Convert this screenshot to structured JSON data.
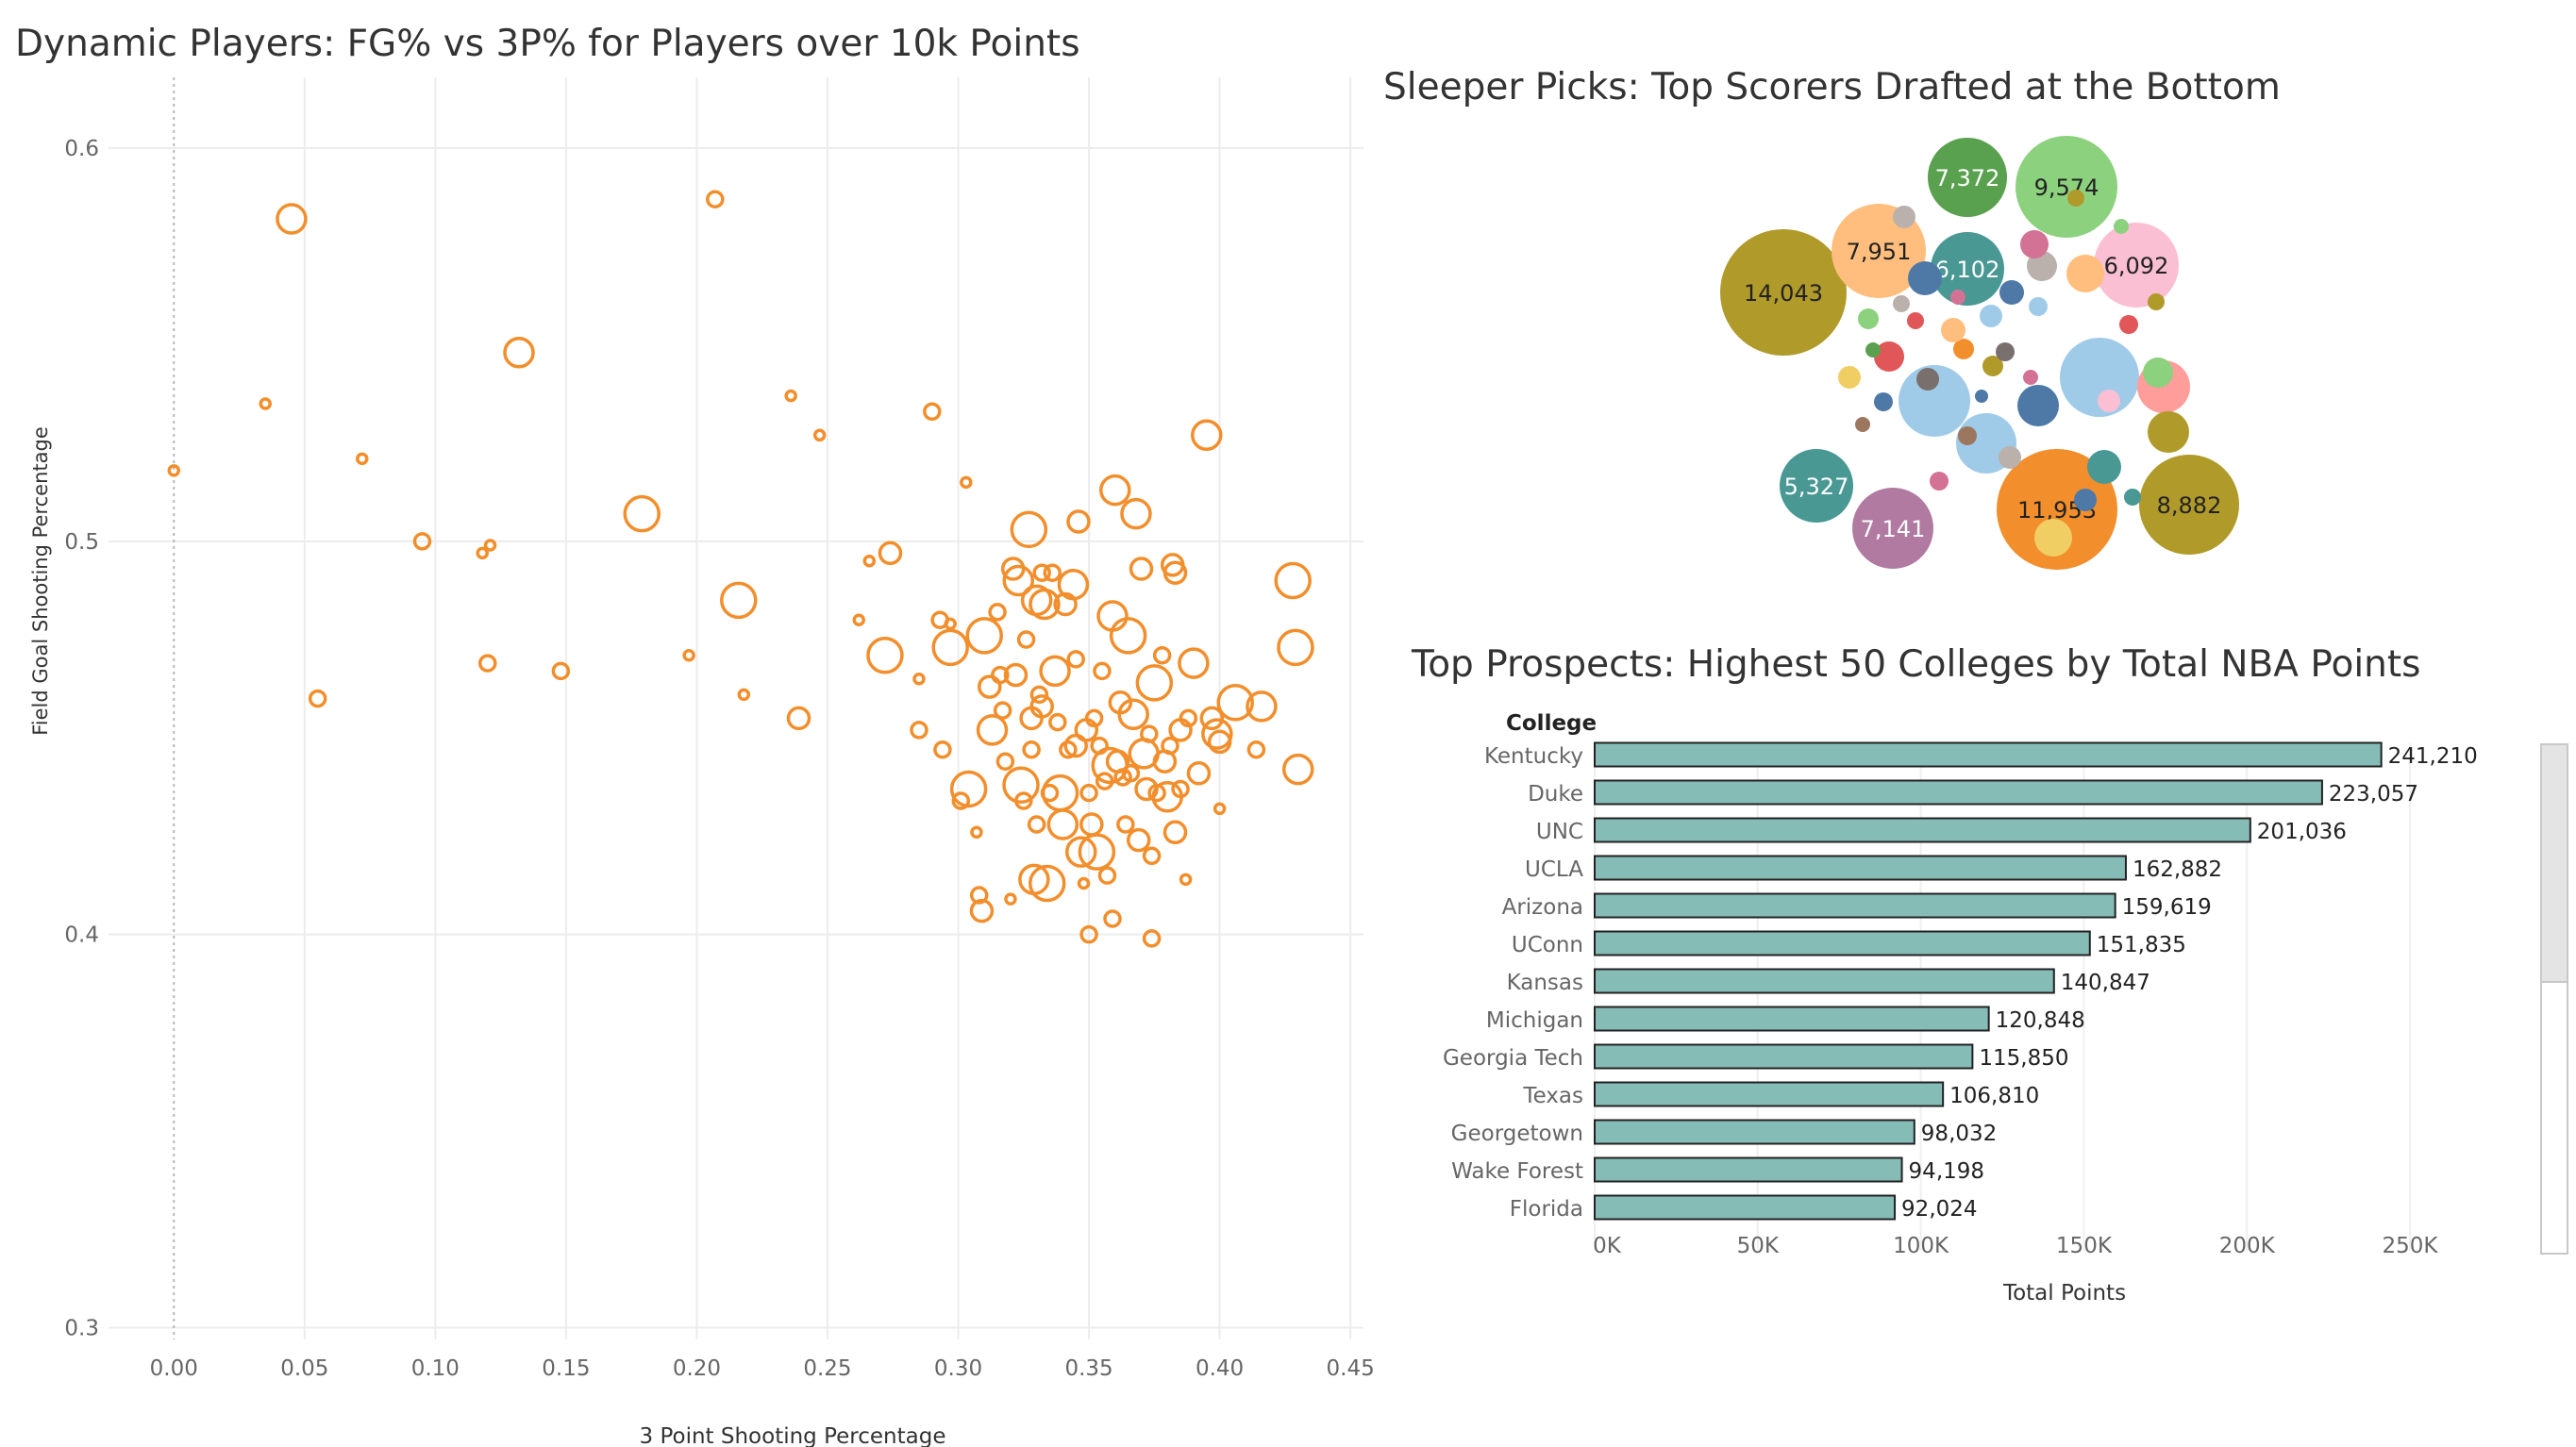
{
  "chart_data": [
    {
      "type": "scatter",
      "title": "Dynamic Players: FG% vs 3P% for Players over 10k Points",
      "xlabel": "3 Point Shooting Percentage",
      "ylabel": "Field Goal Shooting Percentage",
      "xlim": [
        -0.025,
        0.455
      ],
      "ylim": [
        0.297,
        0.618
      ],
      "xticks": [
        "0.00",
        "0.05",
        "0.10",
        "0.15",
        "0.20",
        "0.25",
        "0.30",
        "0.35",
        "0.40",
        "0.45"
      ],
      "yticks": [
        "0.3",
        "0.4",
        "0.5",
        "0.6"
      ],
      "marker_color": "#f28e2b",
      "grid": true,
      "points": [
        [
          0.0,
          0.518,
          1
        ],
        [
          0.035,
          0.535,
          1
        ],
        [
          0.045,
          0.582,
          4
        ],
        [
          0.055,
          0.46,
          2
        ],
        [
          0.072,
          0.521,
          1
        ],
        [
          0.095,
          0.5,
          2
        ],
        [
          0.118,
          0.497,
          1
        ],
        [
          0.121,
          0.499,
          1
        ],
        [
          0.12,
          0.469,
          2
        ],
        [
          0.132,
          0.548,
          4
        ],
        [
          0.148,
          0.467,
          2
        ],
        [
          0.179,
          0.507,
          5
        ],
        [
          0.197,
          0.471,
          1
        ],
        [
          0.207,
          0.587,
          2
        ],
        [
          0.216,
          0.485,
          5
        ],
        [
          0.218,
          0.461,
          1
        ],
        [
          0.236,
          0.537,
          1
        ],
        [
          0.239,
          0.455,
          3
        ],
        [
          0.247,
          0.527,
          1
        ],
        [
          0.262,
          0.48,
          1
        ],
        [
          0.266,
          0.495,
          1
        ],
        [
          0.274,
          0.497,
          3
        ],
        [
          0.272,
          0.471,
          5
        ],
        [
          0.285,
          0.465,
          1
        ],
        [
          0.285,
          0.452,
          2
        ],
        [
          0.29,
          0.533,
          2
        ],
        [
          0.293,
          0.48,
          2
        ],
        [
          0.294,
          0.447,
          2
        ],
        [
          0.297,
          0.473,
          5
        ],
        [
          0.297,
          0.479,
          1
        ],
        [
          0.301,
          0.434,
          2
        ],
        [
          0.303,
          0.515,
          1
        ],
        [
          0.304,
          0.437,
          5
        ],
        [
          0.307,
          0.426,
          1
        ],
        [
          0.308,
          0.41,
          2
        ],
        [
          0.309,
          0.406,
          3
        ],
        [
          0.31,
          0.476,
          5
        ],
        [
          0.312,
          0.463,
          3
        ],
        [
          0.313,
          0.452,
          4
        ],
        [
          0.315,
          0.482,
          2
        ],
        [
          0.316,
          0.466,
          2
        ],
        [
          0.317,
          0.457,
          2
        ],
        [
          0.318,
          0.444,
          2
        ],
        [
          0.32,
          0.409,
          1
        ],
        [
          0.321,
          0.493,
          3
        ],
        [
          0.322,
          0.466,
          3
        ],
        [
          0.323,
          0.49,
          4
        ],
        [
          0.324,
          0.438,
          5
        ],
        [
          0.325,
          0.434,
          2
        ],
        [
          0.326,
          0.475,
          2
        ],
        [
          0.327,
          0.503,
          5
        ],
        [
          0.328,
          0.455,
          3
        ],
        [
          0.328,
          0.447,
          2
        ],
        [
          0.329,
          0.414,
          4
        ],
        [
          0.33,
          0.485,
          4
        ],
        [
          0.33,
          0.428,
          2
        ],
        [
          0.331,
          0.461,
          2
        ],
        [
          0.332,
          0.492,
          2
        ],
        [
          0.332,
          0.458,
          3
        ],
        [
          0.333,
          0.484,
          4
        ],
        [
          0.334,
          0.413,
          5
        ],
        [
          0.335,
          0.436,
          2
        ],
        [
          0.336,
          0.492,
          2
        ],
        [
          0.337,
          0.467,
          4
        ],
        [
          0.338,
          0.454,
          2
        ],
        [
          0.339,
          0.436,
          5
        ],
        [
          0.34,
          0.428,
          4
        ],
        [
          0.341,
          0.484,
          3
        ],
        [
          0.342,
          0.447,
          2
        ],
        [
          0.344,
          0.489,
          4
        ],
        [
          0.345,
          0.47,
          2
        ],
        [
          0.345,
          0.448,
          3
        ],
        [
          0.346,
          0.505,
          3
        ],
        [
          0.347,
          0.421,
          4
        ],
        [
          0.348,
          0.413,
          1
        ],
        [
          0.349,
          0.452,
          3
        ],
        [
          0.35,
          0.4,
          2
        ],
        [
          0.35,
          0.436,
          2
        ],
        [
          0.351,
          0.428,
          3
        ],
        [
          0.352,
          0.455,
          2
        ],
        [
          0.353,
          0.421,
          5
        ],
        [
          0.354,
          0.448,
          2
        ],
        [
          0.355,
          0.467,
          2
        ],
        [
          0.356,
          0.439,
          2
        ],
        [
          0.357,
          0.415,
          2
        ],
        [
          0.358,
          0.443,
          5
        ],
        [
          0.359,
          0.404,
          2
        ],
        [
          0.359,
          0.481,
          4
        ],
        [
          0.36,
          0.513,
          4
        ],
        [
          0.361,
          0.444,
          3
        ],
        [
          0.362,
          0.459,
          3
        ],
        [
          0.363,
          0.44,
          2
        ],
        [
          0.364,
          0.428,
          2
        ],
        [
          0.365,
          0.476,
          5
        ],
        [
          0.366,
          0.441,
          2
        ],
        [
          0.367,
          0.456,
          4
        ],
        [
          0.368,
          0.507,
          4
        ],
        [
          0.369,
          0.424,
          3
        ],
        [
          0.37,
          0.493,
          3
        ],
        [
          0.371,
          0.446,
          4
        ],
        [
          0.372,
          0.437,
          3
        ],
        [
          0.373,
          0.451,
          2
        ],
        [
          0.374,
          0.42,
          2
        ],
        [
          0.374,
          0.399,
          2
        ],
        [
          0.375,
          0.464,
          5
        ],
        [
          0.376,
          0.436,
          2
        ],
        [
          0.378,
          0.471,
          2
        ],
        [
          0.379,
          0.444,
          3
        ],
        [
          0.38,
          0.435,
          4
        ],
        [
          0.381,
          0.448,
          2
        ],
        [
          0.382,
          0.494,
          3
        ],
        [
          0.383,
          0.426,
          3
        ],
        [
          0.383,
          0.492,
          3
        ],
        [
          0.385,
          0.437,
          2
        ],
        [
          0.385,
          0.452,
          3
        ],
        [
          0.387,
          0.414,
          1
        ],
        [
          0.388,
          0.455,
          2
        ],
        [
          0.39,
          0.469,
          4
        ],
        [
          0.392,
          0.441,
          3
        ],
        [
          0.395,
          0.527,
          4
        ],
        [
          0.397,
          0.455,
          3
        ],
        [
          0.399,
          0.451,
          4
        ],
        [
          0.4,
          0.432,
          1
        ],
        [
          0.4,
          0.449,
          3
        ],
        [
          0.406,
          0.459,
          5
        ],
        [
          0.414,
          0.447,
          2
        ],
        [
          0.416,
          0.458,
          4
        ],
        [
          0.428,
          0.49,
          5
        ],
        [
          0.429,
          0.473,
          5
        ],
        [
          0.43,
          0.442,
          4
        ]
      ]
    },
    {
      "type": "packed-bubble",
      "title": "Sleeper Picks: Top Scorers Drafted at the Bottom",
      "bubbles": [
        {
          "value": 14043,
          "label": "14,043",
          "color": "#b09a2a",
          "text_color": "#222222"
        },
        {
          "value": 11953,
          "label": "11,953",
          "color": "#f28e2b",
          "text_color": "#222222"
        },
        {
          "value": 9574,
          "label": "9,574",
          "color": "#8cd17d",
          "text_color": "#222222"
        },
        {
          "value": 8882,
          "label": "8,882",
          "color": "#b09a2a",
          "text_color": "#222222"
        },
        {
          "value": 7951,
          "label": "7,951",
          "color": "#ffbe7d",
          "text_color": "#222222"
        },
        {
          "value": 7372,
          "label": "7,372",
          "color": "#59a14f",
          "text_color": "#ffffff"
        },
        {
          "value": 7141,
          "label": "7,141",
          "color": "#b07aa1",
          "text_color": "#ffffff"
        },
        {
          "value": 6102,
          "label": "6,102",
          "color": "#499894",
          "text_color": "#ffffff"
        },
        {
          "value": 6092,
          "label": "6,092",
          "color": "#fabfd2",
          "text_color": "#222222"
        },
        {
          "value": 5327,
          "label": "5,327",
          "color": "#499894",
          "text_color": "#ffffff"
        },
        {
          "value": 0,
          "label": "",
          "color": "#a0cbe8"
        },
        {
          "value": 0,
          "label": "",
          "color": "#a0cbe8"
        },
        {
          "value": 0,
          "label": "",
          "color": "#a0cbe8"
        },
        {
          "value": 0,
          "label": "",
          "color": "#4e79a7"
        },
        {
          "value": 0,
          "label": "",
          "color": "#4e79a7"
        },
        {
          "value": 0,
          "label": "",
          "color": "#ff9d9a"
        },
        {
          "value": 0,
          "label": "",
          "color": "#f1ce63"
        },
        {
          "value": 0,
          "label": "",
          "color": "#499894"
        },
        {
          "value": 0,
          "label": "",
          "color": "#b09a2a"
        },
        {
          "value": 0,
          "label": "",
          "color": "#bab0ac"
        },
        {
          "value": 0,
          "label": "",
          "color": "#ffbe7d"
        },
        {
          "value": 0,
          "label": "",
          "color": "#8cd17d"
        },
        {
          "value": 0,
          "label": "",
          "color": "#d37295"
        },
        {
          "value": 0,
          "label": "",
          "color": "#e15759"
        },
        {
          "value": 0,
          "label": "",
          "color": "#fabfd2"
        },
        {
          "value": 0,
          "label": "",
          "color": "#9d7660"
        },
        {
          "value": 0,
          "label": "",
          "color": "#79706e"
        },
        {
          "value": 0,
          "label": "",
          "color": "#f28e2b"
        }
      ]
    },
    {
      "type": "bar",
      "title": "Top Prospects: Highest 50 Colleges by Total NBA Points",
      "row_header": "College",
      "xlabel": "Total Points",
      "xlim": [
        0,
        285000
      ],
      "xticks": [
        {
          "value": 0,
          "label": "0K"
        },
        {
          "value": 50000,
          "label": "50K"
        },
        {
          "value": 100000,
          "label": "100K"
        },
        {
          "value": 150000,
          "label": "150K"
        },
        {
          "value": 200000,
          "label": "200K"
        },
        {
          "value": 250000,
          "label": "250K"
        }
      ],
      "bar_color": "#86bcb6",
      "categories": [
        "Kentucky",
        "Duke",
        "UNC",
        "UCLA",
        "Arizona",
        "UConn",
        "Kansas",
        "Michigan",
        "Georgia Tech",
        "Texas",
        "Georgetown",
        "Wake Forest",
        "Florida"
      ],
      "values": [
        241210,
        223057,
        201036,
        162882,
        159619,
        151835,
        140847,
        120848,
        115850,
        106810,
        98032,
        94198,
        92024
      ],
      "labels": [
        "241,210",
        "223,057",
        "201,036",
        "162,882",
        "159,619",
        "151,835",
        "140,847",
        "120,848",
        "115,850",
        "106,810",
        "98,032",
        "94,198",
        "92,024"
      ]
    }
  ]
}
